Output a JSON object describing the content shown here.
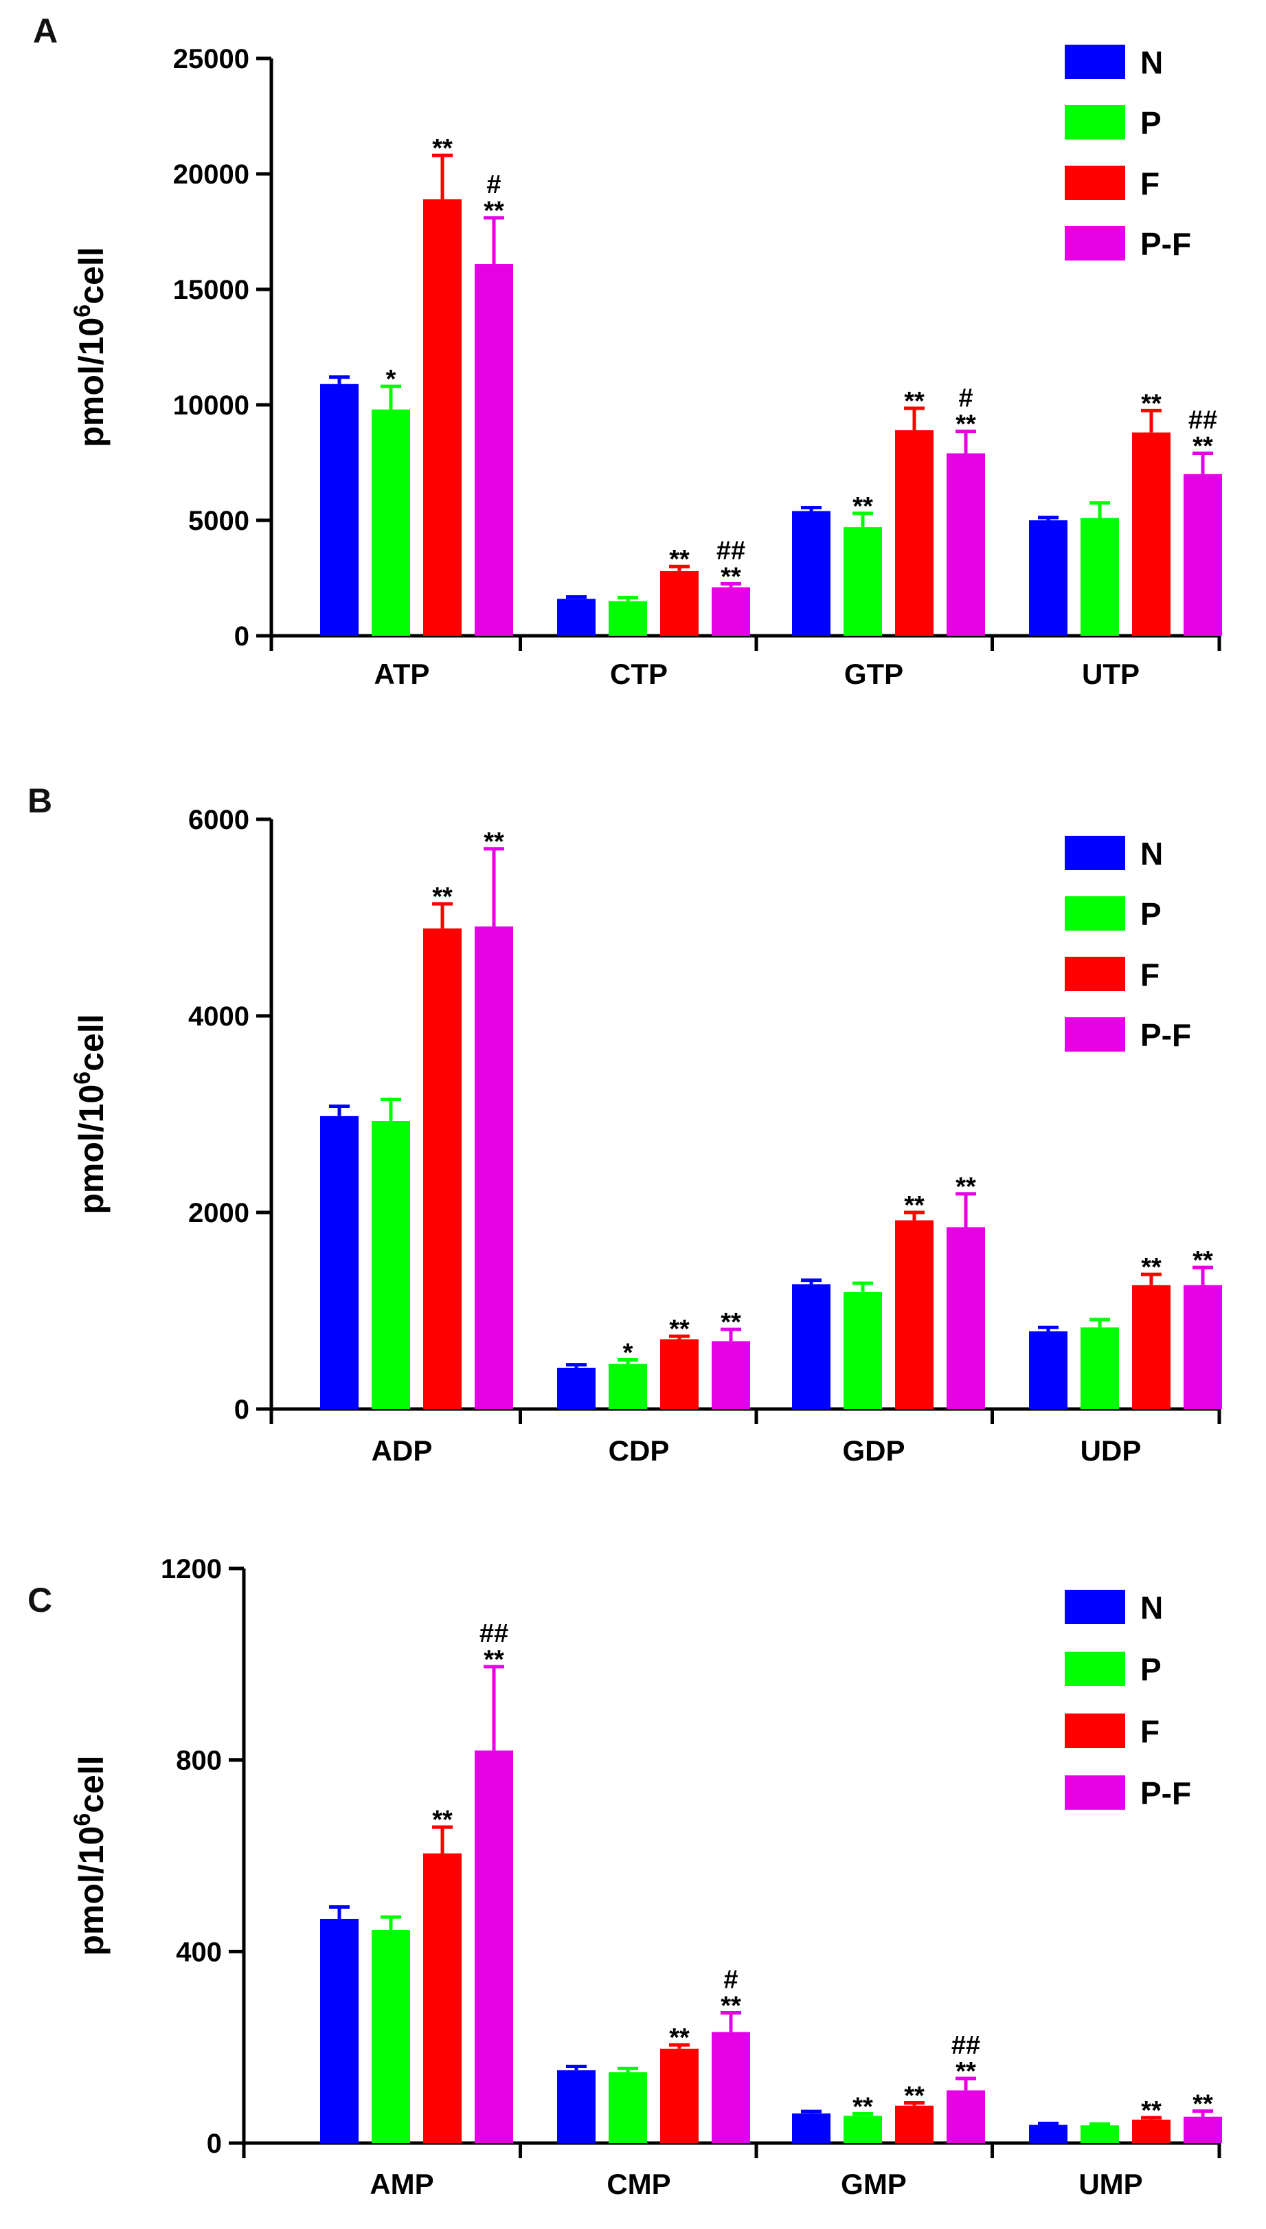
{
  "figure": {
    "legend": [
      {
        "name": "N",
        "color": "#0000ff"
      },
      {
        "name": "P",
        "color": "#00ff00"
      },
      {
        "name": "F",
        "color": "#ff0000"
      },
      {
        "name": "P-F",
        "color": "#e600e6"
      }
    ],
    "y_unit_prefix": "pmol/10",
    "y_unit_sup": "6",
    "y_unit_suffix": "cell"
  },
  "chart_data": [
    {
      "panel": "A",
      "type": "bar",
      "categories": [
        "ATP",
        "CTP",
        "GTP",
        "UTP"
      ],
      "ylabel": "pmol/10^6cell",
      "ylim": [
        0,
        25000
      ],
      "yticks": [
        0,
        5000,
        10000,
        15000,
        20000,
        25000
      ],
      "series": [
        {
          "name": "N",
          "values": [
            10900,
            1600,
            5400,
            5000
          ],
          "errors": [
            300,
            80,
            150,
            120
          ]
        },
        {
          "name": "P",
          "values": [
            9800,
            1500,
            4700,
            5100
          ],
          "errors": [
            1000,
            150,
            600,
            650
          ]
        },
        {
          "name": "F",
          "values": [
            18900,
            2800,
            8900,
            8800
          ],
          "errors": [
            1900,
            200,
            950,
            950
          ]
        },
        {
          "name": "P-F",
          "values": [
            16100,
            2100,
            7900,
            7000
          ],
          "errors": [
            2000,
            150,
            950,
            900
          ]
        }
      ],
      "significance": [
        [
          [],
          [],
          [],
          []
        ],
        [
          [
            "*"
          ],
          [],
          [
            "**"
          ],
          []
        ],
        [
          [
            "**"
          ],
          [
            "**"
          ],
          [
            "**"
          ],
          [
            "**"
          ]
        ],
        [
          [
            "#",
            "**"
          ],
          [
            "##",
            "**"
          ],
          [
            "#",
            "**"
          ],
          [
            "##",
            "**"
          ]
        ]
      ]
    },
    {
      "panel": "B",
      "type": "bar",
      "categories": [
        "ADP",
        "CDP",
        "GDP",
        "UDP"
      ],
      "ylabel": "pmol/10^6cell",
      "ylim": [
        0,
        6000
      ],
      "yticks": [
        0,
        2000,
        4000,
        6000
      ],
      "series": [
        {
          "name": "N",
          "values": [
            2980,
            420,
            1270,
            790
          ],
          "errors": [
            100,
            30,
            40,
            40
          ]
        },
        {
          "name": "P",
          "values": [
            2930,
            460,
            1190,
            830
          ],
          "errors": [
            220,
            40,
            90,
            80
          ]
        },
        {
          "name": "F",
          "values": [
            4890,
            710,
            1920,
            1260
          ],
          "errors": [
            250,
            30,
            80,
            110
          ]
        },
        {
          "name": "P-F",
          "values": [
            4910,
            690,
            1850,
            1260
          ],
          "errors": [
            790,
            120,
            340,
            180
          ]
        }
      ],
      "significance": [
        [
          [],
          [],
          [],
          []
        ],
        [
          [],
          [
            "*"
          ],
          [],
          []
        ],
        [
          [
            "**"
          ],
          [
            "**"
          ],
          [
            "**"
          ],
          [
            "**"
          ]
        ],
        [
          [
            "**"
          ],
          [
            "**"
          ],
          [
            "**"
          ],
          [
            "**"
          ]
        ]
      ]
    },
    {
      "panel": "C",
      "type": "bar",
      "categories": [
        "AMP",
        "CMP",
        "GMP",
        "UMP"
      ],
      "ylabel": "pmol/10^6cell",
      "ylim": [
        0,
        1200
      ],
      "yticks": [
        0,
        400,
        800,
        1200
      ],
      "series": [
        {
          "name": "N",
          "values": [
            468,
            152,
            62,
            38
          ],
          "errors": [
            25,
            8,
            4,
            3
          ]
        },
        {
          "name": "P",
          "values": [
            445,
            148,
            57,
            37
          ],
          "errors": [
            27,
            8,
            4,
            3
          ]
        },
        {
          "name": "F",
          "values": [
            605,
            197,
            78,
            49
          ],
          "errors": [
            55,
            8,
            6,
            4
          ]
        },
        {
          "name": "P-F",
          "values": [
            820,
            232,
            110,
            55
          ],
          "errors": [
            175,
            40,
            25,
            12
          ]
        }
      ],
      "significance": [
        [
          [],
          [],
          [],
          []
        ],
        [
          [],
          [],
          [
            "**"
          ],
          []
        ],
        [
          [
            "**"
          ],
          [
            "**"
          ],
          [
            "**"
          ],
          [
            "**"
          ]
        ],
        [
          [
            "##",
            "**"
          ],
          [
            "#",
            "**"
          ],
          [
            "##",
            "**"
          ],
          [
            "**"
          ]
        ]
      ]
    }
  ]
}
